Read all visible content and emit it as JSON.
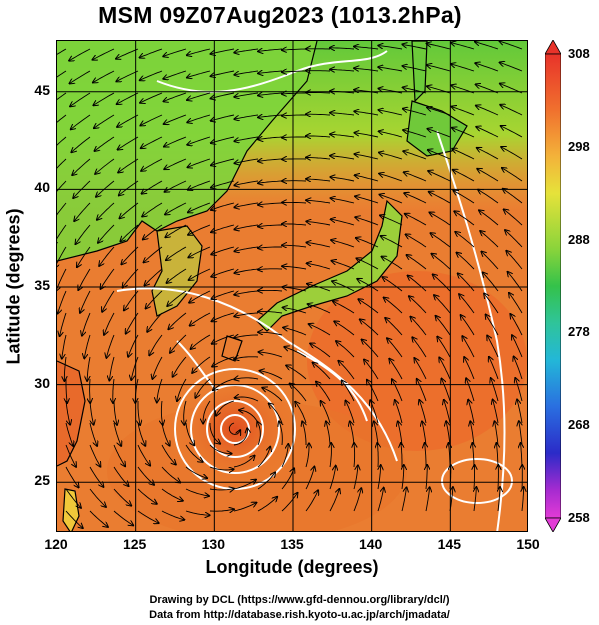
{
  "title": "MSM 09Z07Aug2023 (1013.2hPa)",
  "xlabel": "Longitude (degrees)",
  "ylabel": "Latitude  (degrees)",
  "x_ticks": [
    "120",
    "125",
    "130",
    "135",
    "140",
    "145",
    "150"
  ],
  "y_ticks": [
    "25",
    "30",
    "35",
    "40",
    "45"
  ],
  "colorbar": {
    "labels": [
      "308",
      "298",
      "288",
      "278",
      "268",
      "258"
    ],
    "min": 258,
    "max": 308
  },
  "credit_line1": "Drawing by DCL (https://www.gfd-dennou.org/library/dcl/)",
  "credit_line2": "Data from http://database.rish.kyoto-u.ac.jp/arch/jmadata/",
  "map": {
    "lon_range": [
      120,
      150
    ],
    "lat_range": [
      22.4,
      47.6
    ],
    "land_color": "#7dd63a",
    "sea_color": "#e8792f",
    "warm_color": "#ef5a24",
    "coast_color": "#000000",
    "contour_color": "#ffffff"
  }
}
